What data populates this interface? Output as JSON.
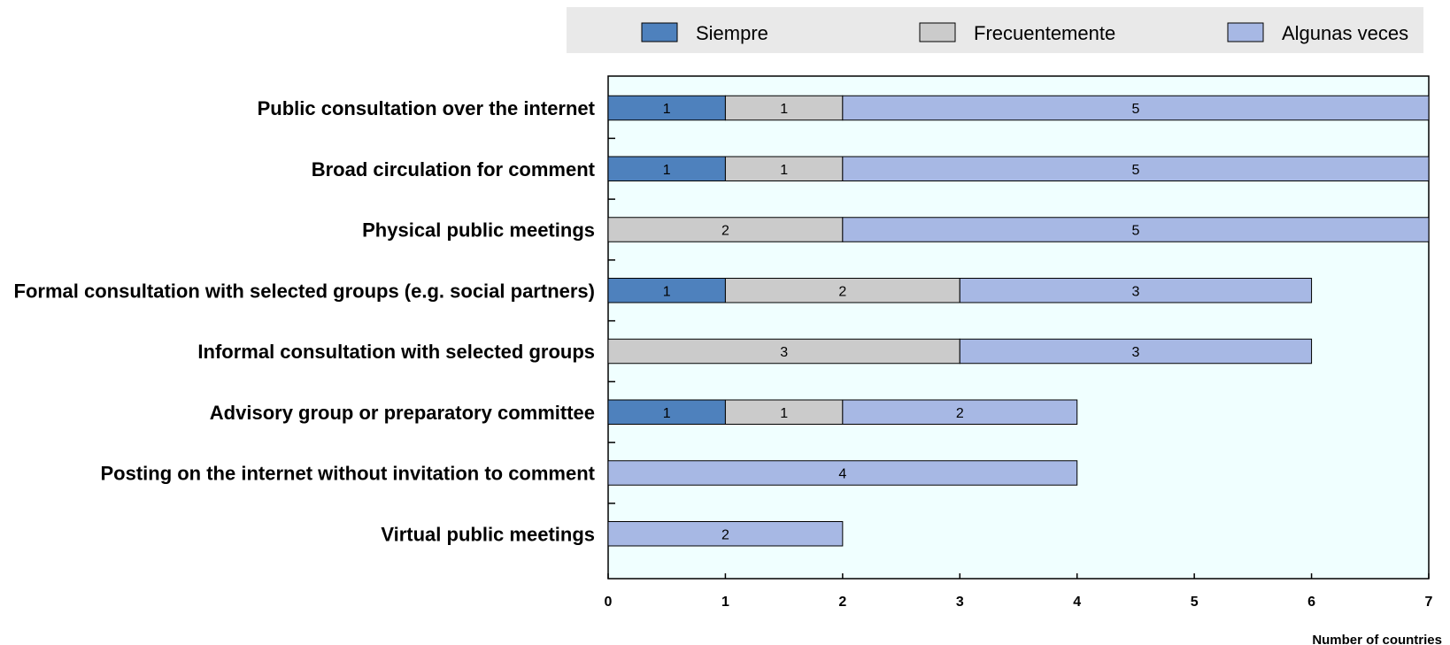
{
  "chart_data": {
    "type": "bar",
    "orientation": "horizontal",
    "stacked": true,
    "categories": [
      "Public consultation over the internet",
      "Broad circulation for comment",
      "Physical public meetings",
      "Formal consultation with selected groups (e.g. social partners)",
      "Informal consultation with selected groups",
      "Advisory group or preparatory committee",
      "Posting on the internet without invitation to comment",
      "Virtual public meetings"
    ],
    "series": [
      {
        "name": "Siempre",
        "color": "#4e81bd",
        "values": [
          1,
          1,
          0,
          1,
          0,
          1,
          0,
          0
        ]
      },
      {
        "name": "Frecuentemente",
        "color": "#cbcbcb",
        "values": [
          1,
          1,
          2,
          2,
          3,
          1,
          0,
          0
        ]
      },
      {
        "name": "Algunas veces",
        "color": "#a7b8e4",
        "values": [
          5,
          5,
          5,
          3,
          3,
          2,
          4,
          2
        ]
      }
    ],
    "xlabel": "Number of countries",
    "xlim": [
      0,
      7
    ],
    "xticks": [
      "0",
      "1",
      "2",
      "3",
      "4",
      "5",
      "6",
      "7"
    ],
    "legend_position": "top",
    "plot_background": "#f0ffff",
    "legend_background": "#e9e9e9"
  }
}
